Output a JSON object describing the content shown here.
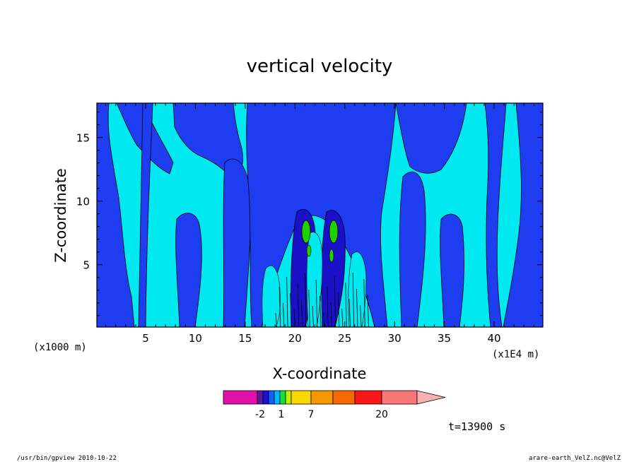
{
  "chart_data": {
    "type": "heatmap",
    "title": "vertical velocity",
    "xlabel": "X-coordinate",
    "ylabel": "Z-coordinate",
    "x_unit": "(x1E4 m)",
    "y_unit": "(x1000 m)",
    "xlim": [
      0.1,
      44.9
    ],
    "ylim": [
      0.1,
      17.7
    ],
    "x_ticks": [
      "5",
      "10",
      "15",
      "20",
      "25",
      "30",
      "35",
      "40"
    ],
    "y_ticks": [
      "5",
      "10",
      "15"
    ],
    "x_tick_values": [
      5,
      10,
      15,
      20,
      25,
      30,
      35,
      40
    ],
    "y_tick_values": [
      5,
      10,
      15
    ],
    "colorbar": {
      "labels": [
        "-2",
        "1",
        "7",
        "20"
      ],
      "colors": [
        "#e010a8",
        "#5a1a9c",
        "#1a10d8",
        "#1060ff",
        "#00b8ff",
        "#10e040",
        "#c0f000",
        "#f8d800",
        "#f89800",
        "#f86800",
        "#f81818",
        "#f87878",
        "#f8b0b0"
      ],
      "extend": "max"
    },
    "field_colors": {
      "negative": "#1e3cf0",
      "weak": "#00e8f0",
      "strong": "#20d000",
      "deep": "#1a10c8"
    },
    "time_label": "t=13900 s"
  },
  "footer": {
    "left": "/usr/bin/gpview  2010-10-22",
    "right": "arare-earth_VelZ.nc@VelZ"
  }
}
